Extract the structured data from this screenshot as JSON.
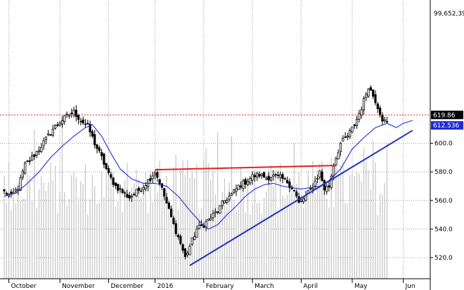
{
  "chart_data": {
    "type": "candlestick",
    "title": "",
    "ylim": [
      510,
      660
    ],
    "y_ticks": [
      520,
      540,
      560,
      580,
      600
    ],
    "y_tick_labels": [
      "520.0",
      "540.0",
      "560.0",
      "580.0",
      "600.0"
    ],
    "x_labels": [
      "October",
      "November",
      "December",
      "2016",
      "February",
      "March",
      "April",
      "May",
      "Jun"
    ],
    "grid": true,
    "badges": {
      "volume_label": "99,652,39",
      "last_price_label": "619.86",
      "last_price": 619.86,
      "ma_label": "612.536",
      "ma_value": 612.536
    },
    "reference_line_value": 619.86,
    "trendlines": [
      {
        "name": "resistance",
        "color": "#e32222",
        "from": {
          "bar": 65,
          "value": 581.5
        },
        "to": {
          "bar": 143,
          "value": 584.5
        }
      },
      {
        "name": "support",
        "color": "#2233bb",
        "from": {
          "bar": 80,
          "value": 514.5
        },
        "to": {
          "bar": 176,
          "value": 609
        }
      }
    ],
    "bars_count": 166,
    "series": [
      {
        "name": "Close",
        "anchors": [
          [
            0,
            566
          ],
          [
            3,
            563
          ],
          [
            6,
            569
          ],
          [
            9,
            585
          ],
          [
            12,
            590
          ],
          [
            15,
            596
          ],
          [
            18,
            603
          ],
          [
            21,
            610
          ],
          [
            24,
            615
          ],
          [
            27,
            619
          ],
          [
            30,
            622
          ],
          [
            33,
            616
          ],
          [
            36,
            612
          ],
          [
            39,
            600
          ],
          [
            42,
            590
          ],
          [
            45,
            578
          ],
          [
            48,
            570
          ],
          [
            51,
            566
          ],
          [
            54,
            562
          ],
          [
            57,
            566
          ],
          [
            60,
            570
          ],
          [
            63,
            576
          ],
          [
            65,
            580
          ],
          [
            67,
            573
          ],
          [
            70,
            558
          ],
          [
            73,
            543
          ],
          [
            76,
            530
          ],
          [
            78,
            520
          ],
          [
            80,
            528
          ],
          [
            83,
            540
          ],
          [
            86,
            543
          ],
          [
            89,
            548
          ],
          [
            92,
            553
          ],
          [
            95,
            560
          ],
          [
            98,
            564
          ],
          [
            101,
            570
          ],
          [
            104,
            573
          ],
          [
            107,
            577
          ],
          [
            110,
            578
          ],
          [
            113,
            576
          ],
          [
            116,
            577
          ],
          [
            119,
            576
          ],
          [
            122,
            573
          ],
          [
            125,
            567
          ],
          [
            127,
            558
          ],
          [
            130,
            563
          ],
          [
            133,
            570
          ],
          [
            136,
            580
          ],
          [
            138,
            568
          ],
          [
            140,
            570
          ],
          [
            142,
            585
          ],
          [
            145,
            600
          ],
          [
            148,
            605
          ],
          [
            151,
            613
          ],
          [
            154,
            625
          ],
          [
            157,
            640
          ],
          [
            160,
            630
          ],
          [
            163,
            617
          ],
          [
            165,
            614
          ],
          [
            168,
            612
          ],
          [
            171,
            622
          ],
          [
            173,
            618
          ],
          [
            175,
            625
          ]
        ]
      },
      {
        "name": "Moving Average",
        "color": "#1f2ad6",
        "anchors": [
          [
            0,
            563
          ],
          [
            5,
            565
          ],
          [
            10,
            572
          ],
          [
            15,
            580
          ],
          [
            20,
            590
          ],
          [
            25,
            598
          ],
          [
            30,
            605
          ],
          [
            35,
            611
          ],
          [
            38,
            613
          ],
          [
            42,
            605
          ],
          [
            46,
            593
          ],
          [
            50,
            582
          ],
          [
            55,
            575
          ],
          [
            60,
            572
          ],
          [
            65,
            572
          ],
          [
            70,
            570
          ],
          [
            75,
            563
          ],
          [
            80,
            553
          ],
          [
            85,
            544
          ],
          [
            88,
            540
          ],
          [
            92,
            543
          ],
          [
            96,
            550
          ],
          [
            100,
            556
          ],
          [
            104,
            563
          ],
          [
            108,
            568
          ],
          [
            112,
            571
          ],
          [
            116,
            572
          ],
          [
            120,
            570
          ],
          [
            124,
            569
          ],
          [
            128,
            568
          ],
          [
            132,
            569
          ],
          [
            136,
            570
          ],
          [
            140,
            574
          ],
          [
            145,
            582
          ],
          [
            150,
            596
          ],
          [
            155,
            604
          ],
          [
            160,
            611
          ],
          [
            165,
            614
          ],
          [
            169,
            611
          ],
          [
            172,
            614
          ],
          [
            176,
            616
          ]
        ]
      },
      {
        "name": "Volume",
        "color": "#c8c8c8",
        "scale": "relative"
      }
    ]
  }
}
